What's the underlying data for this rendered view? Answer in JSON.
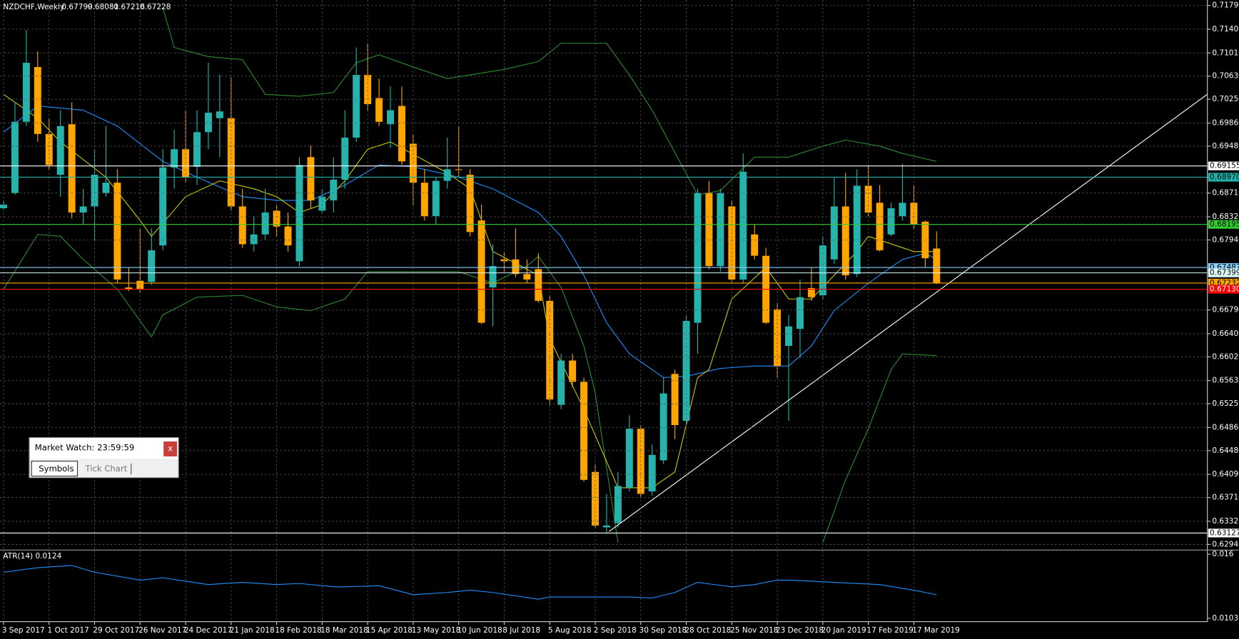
{
  "window": {
    "title": "Market Watch: 23:59:59",
    "close": "x",
    "tabs": [
      "Symbols",
      "Tick Chart"
    ]
  },
  "chart_data": [
    {
      "type": "candlestick",
      "title": "NZDCHF,Weekly",
      "categories": [
        "3 Sep 2017",
        null,
        null,
        null,
        "1 Oct 2017",
        null,
        null,
        null,
        "29 Oct 2017",
        null,
        null,
        null,
        "26 Nov 2017",
        null,
        null,
        null,
        "24 Dec 2017",
        null,
        null,
        null,
        "21 Jan 2018",
        null,
        null,
        null,
        "18 Feb 2018",
        null,
        null,
        null,
        "18 Mar 2018",
        null,
        null,
        null,
        "15 Apr 2018",
        null,
        null,
        null,
        "13 May 2018",
        null,
        null,
        null,
        "10 Jun 2018",
        null,
        null,
        null,
        "8 Jul 2018",
        null,
        null,
        null,
        "5 Aug 2018",
        null,
        null,
        null,
        "2 Sep 2018",
        null,
        null,
        null,
        "30 Sep 2018",
        null,
        null,
        null,
        "28 Oct 2018",
        null,
        null,
        null,
        "25 Nov 2018",
        null,
        null,
        null,
        "23 Dec 2018",
        null,
        null,
        null,
        "20 Jan 2019",
        null,
        null,
        null,
        "17 Feb 2019",
        null,
        null,
        null,
        "17 Mar 2019",
        null,
        null
      ],
      "open": [
        0.6846,
        0.6871,
        0.6988,
        0.7078,
        0.6968,
        0.6901,
        0.6984,
        0.6839,
        0.6849,
        0.6871,
        0.6888,
        0.6716,
        0.6727,
        0.6725,
        0.6785,
        0.6913,
        0.6943,
        0.6914,
        0.6971,
        0.6994,
        0.6994,
        0.6849,
        0.6787,
        0.6803,
        0.6842,
        0.6816,
        0.6759,
        0.693,
        0.6842,
        0.6859,
        0.6893,
        0.6962,
        0.7065,
        0.7027,
        0.6984,
        0.7014,
        0.6952,
        0.6888,
        0.6833,
        0.6891,
        0.691,
        0.6901,
        0.6826,
        0.6716,
        0.6762,
        0.6762,
        0.6738,
        0.6746,
        0.6694,
        0.6523,
        0.6596,
        0.6561,
        0.6413,
        0.6322,
        0.6329,
        0.6387,
        0.6484,
        0.6381,
        0.6432,
        0.6574,
        0.6497,
        0.6658,
        0.6871,
        0.6751,
        0.6849,
        0.6729,
        0.6803,
        0.6768,
        0.668,
        0.662,
        0.6648,
        0.6715,
        0.6703,
        0.6762,
        0.6849,
        0.6738,
        0.6883,
        0.6855,
        0.6803,
        0.6833,
        0.6855,
        0.6824,
        0.67799
      ],
      "high": [
        0.6859,
        0.702,
        0.7139,
        0.7104,
        0.6994,
        0.7007,
        0.702,
        0.6878,
        0.6943,
        0.6981,
        0.691,
        0.6749,
        0.6813,
        0.6813,
        0.6943,
        0.6975,
        0.7007,
        0.7007,
        0.7085,
        0.7065,
        0.7061,
        0.6878,
        0.6833,
        0.6878,
        0.6852,
        0.6839,
        0.693,
        0.6949,
        0.6878,
        0.693,
        0.7007,
        0.711,
        0.7117,
        0.7059,
        0.7046,
        0.7046,
        0.6968,
        0.691,
        0.6897,
        0.6962,
        0.6981,
        0.691,
        0.6852,
        0.6787,
        0.6775,
        0.6813,
        0.6762,
        0.6772,
        0.6703,
        0.6607,
        0.6607,
        0.6568,
        0.6426,
        0.6377,
        0.6413,
        0.6506,
        0.649,
        0.6458,
        0.6568,
        0.6581,
        0.6671,
        0.6878,
        0.6891,
        0.6878,
        0.6859,
        0.6936,
        0.682,
        0.6781,
        0.6691,
        0.6671,
        0.6729,
        0.6749,
        0.68,
        0.6897,
        0.6904,
        0.691,
        0.6917,
        0.6884,
        0.6855,
        0.6919,
        0.6884,
        0.6826,
        0.68081
      ],
      "low": [
        0.6842,
        0.6868,
        0.6981,
        0.6955,
        0.691,
        0.6865,
        0.6829,
        0.682,
        0.6794,
        0.6865,
        0.6723,
        0.671,
        0.6707,
        0.672,
        0.6777,
        0.6878,
        0.6888,
        0.6884,
        0.6943,
        0.693,
        0.6842,
        0.6781,
        0.6775,
        0.6794,
        0.68,
        0.6775,
        0.6751,
        0.6846,
        0.6837,
        0.6839,
        0.6878,
        0.6955,
        0.7007,
        0.6981,
        0.6945,
        0.6917,
        0.6852,
        0.6826,
        0.682,
        0.6878,
        0.6897,
        0.68,
        0.6656,
        0.6652,
        0.6742,
        0.6733,
        0.6723,
        0.6691,
        0.6523,
        0.6516,
        0.6552,
        0.6397,
        0.632,
        0.6312,
        0.6322,
        0.6381,
        0.6371,
        0.6374,
        0.6426,
        0.6467,
        0.649,
        0.6607,
        0.6746,
        0.6742,
        0.6725,
        0.6723,
        0.6762,
        0.6656,
        0.6568,
        0.6497,
        0.66,
        0.6694,
        0.6697,
        0.6755,
        0.6729,
        0.6733,
        0.6833,
        0.6775,
        0.68,
        0.6826,
        0.6813,
        0.6749,
        0.67216
      ],
      "close": [
        0.6852,
        0.6988,
        0.7085,
        0.6968,
        0.6917,
        0.6981,
        0.6839,
        0.6849,
        0.6901,
        0.6888,
        0.6729,
        0.6713,
        0.6713,
        0.6777,
        0.6913,
        0.6943,
        0.6897,
        0.6971,
        0.7003,
        0.7005,
        0.6849,
        0.6787,
        0.6803,
        0.6839,
        0.6816,
        0.6785,
        0.6917,
        0.6859,
        0.6865,
        0.6893,
        0.6962,
        0.7065,
        0.7017,
        0.6988,
        0.7007,
        0.6923,
        0.6888,
        0.6833,
        0.6891,
        0.691,
        0.6909,
        0.6807,
        0.6658,
        0.6751,
        0.6759,
        0.6738,
        0.6729,
        0.6694,
        0.6532,
        0.6596,
        0.6561,
        0.64,
        0.6325,
        0.6325,
        0.639,
        0.6484,
        0.6377,
        0.6441,
        0.6542,
        0.649,
        0.6661,
        0.6871,
        0.6751,
        0.6871,
        0.6729,
        0.6906,
        0.6768,
        0.6658,
        0.6587,
        0.6652,
        0.67,
        0.67,
        0.6785,
        0.6849,
        0.6736,
        0.6883,
        0.6839,
        0.6777,
        0.6846,
        0.6855,
        0.682,
        0.6764,
        0.67228
      ],
      "up_color": "#26b3ac",
      "down_color": "#ffa500",
      "indicators": [
        {
          "color": "#2e8b2e",
          "x": [
            14,
            15,
            18,
            21,
            23,
            26,
            29,
            31,
            33,
            36,
            39,
            41,
            44,
            47,
            49,
            53,
            55,
            57,
            61,
            63,
            66,
            69,
            72,
            74,
            77,
            79,
            82
          ],
          "values": [
            0.7175,
            0.711,
            0.7095,
            0.709,
            0.7033,
            0.703,
            0.7036,
            0.7085,
            0.7098,
            0.7078,
            0.7059,
            0.7065,
            0.7074,
            0.7087,
            0.7117,
            0.7117,
            0.7065,
            0.7007,
            0.6868,
            0.6875,
            0.693,
            0.693,
            0.6948,
            0.6958,
            0.6948,
            0.6936,
            0.6923
          ]
        },
        {
          "color": "#2e8b2e",
          "x": [
            0,
            3,
            5,
            7,
            10,
            13,
            14,
            17,
            21,
            24,
            27,
            30,
            32,
            36,
            40,
            43,
            46,
            47,
            49,
            51,
            52,
            54,
            60,
            72,
            74,
            76,
            78,
            79,
            82
          ],
          "values": [
            0.6713,
            0.6803,
            0.68,
            0.6762,
            0.6713,
            0.6635,
            0.6671,
            0.67,
            0.6703,
            0.6684,
            0.6678,
            0.6697,
            0.6742,
            0.6742,
            0.6742,
            0.6723,
            0.6751,
            0.6767,
            0.6716,
            0.662,
            0.6542,
            0.6297,
            null,
            0.6297,
            0.64,
            0.6484,
            0.6581,
            0.6607,
            0.6604
          ]
        },
        {
          "color": "#1e90ff",
          "x": [
            0,
            3,
            7,
            10,
            14,
            17,
            21,
            24,
            27,
            30,
            33,
            36,
            40,
            43,
            47,
            49,
            51,
            53,
            55,
            58,
            60,
            63,
            66,
            69,
            71,
            73,
            76,
            79,
            81,
            82
          ],
          "values": [
            0.6971,
            0.7014,
            0.7007,
            0.6981,
            0.6923,
            0.6897,
            0.6865,
            0.6859,
            0.6859,
            0.6884,
            0.6917,
            0.6914,
            0.6897,
            0.6878,
            0.6839,
            0.68,
            0.6736,
            0.6658,
            0.6607,
            0.6568,
            0.657,
            0.6583,
            0.6587,
            0.6587,
            0.662,
            0.6678,
            0.6723,
            0.6762,
            0.6772,
            0.6762
          ]
        },
        {
          "color": "#c8c800",
          "x": [
            0,
            3,
            5,
            9,
            12,
            13,
            16,
            19,
            22,
            24,
            26,
            28,
            30,
            32,
            34,
            39,
            41,
            43,
            47,
            48,
            51,
            54,
            57,
            59,
            61,
            62,
            64,
            67,
            69,
            71,
            75,
            76,
            80,
            82
          ],
          "values": [
            0.7033,
            0.6994,
            0.6955,
            0.6897,
            0.6826,
            0.68,
            0.6865,
            0.6891,
            0.6878,
            0.6865,
            0.6839,
            0.6852,
            0.6891,
            0.6943,
            0.6955,
            0.6904,
            0.6878,
            0.6775,
            0.6736,
            0.6632,
            0.6516,
            0.6387,
            0.6387,
            0.6413,
            0.6568,
            0.6581,
            0.6697,
            0.6749,
            0.6697,
            0.6697,
            0.6775,
            0.68,
            0.6775,
            0.6775
          ]
        }
      ],
      "trendline": {
        "color": "#ffffff",
        "x": [
          53.2,
          106
        ],
        "values": [
          0.6315,
          0.7036
        ]
      },
      "levels": [
        {
          "value": 0.69155,
          "label": "0.69155",
          "color": "#ffffff"
        },
        {
          "value": 0.6897,
          "label": "0.68970",
          "color": "#20b2aa"
        },
        {
          "value": 0.68195,
          "label": "0.68195",
          "color": "#32cd32"
        },
        {
          "value": 0.67487,
          "label": "0.67487",
          "color": "#87cefa"
        },
        {
          "value": 0.67399,
          "label": "0.67399",
          "color": "#e0ffff"
        },
        {
          "value": 0.67232,
          "label": "0.67232",
          "color": "#ffa500"
        },
        {
          "value": 0.6713,
          "label": "0.67130",
          "color": "#ff0000"
        },
        {
          "value": 0.63127,
          "label": "0.63127",
          "color": "#ffffff"
        }
      ],
      "ylim": [
        0.6286,
        0.7188
      ],
      "yticks": [
        {
          "value": 0.7179,
          "label": "0.71790"
        },
        {
          "value": 0.714,
          "label": "0.71400"
        },
        {
          "value": 0.7101,
          "label": "0.71010"
        },
        {
          "value": 0.7063,
          "label": "0.70630"
        },
        {
          "value": 0.7025,
          "label": "0.70250"
        },
        {
          "value": 0.6986,
          "label": "0.69860"
        },
        {
          "value": 0.6948,
          "label": "0.69480"
        },
        {
          "value": 0.6871,
          "label": "0.68710"
        },
        {
          "value": 0.6832,
          "label": "0.68320"
        },
        {
          "value": 0.6794,
          "label": "0.67940"
        },
        {
          "value": 0.6679,
          "label": "0.66790"
        },
        {
          "value": 0.664,
          "label": "0.66400"
        },
        {
          "value": 0.6602,
          "label": "0.66020"
        },
        {
          "value": 0.6563,
          "label": "0.65630"
        },
        {
          "value": 0.6525,
          "label": "0.65250"
        },
        {
          "value": 0.6486,
          "label": "0.64860"
        },
        {
          "value": 0.6448,
          "label": "0.64480"
        },
        {
          "value": 0.6409,
          "label": "0.64090"
        },
        {
          "value": 0.6371,
          "label": "0.63710"
        },
        {
          "value": 0.6332,
          "label": "0.63320"
        },
        {
          "value": 0.6294,
          "label": "0.62940"
        }
      ],
      "grid": true
    },
    {
      "type": "line",
      "title": "ATR(14) 0.0124",
      "color": "#1e90ff",
      "x": [
        0,
        3,
        6,
        8,
        12,
        14,
        18,
        21,
        24,
        26,
        29,
        30,
        33,
        36,
        39,
        41,
        43,
        47,
        48,
        52,
        55,
        57,
        59,
        61,
        64,
        66,
        68,
        69,
        73,
        77,
        80,
        82
      ],
      "values": [
        0.0144,
        0.0148,
        0.015,
        0.0144,
        0.0137,
        0.0139,
        0.0133,
        0.0135,
        0.0133,
        0.0134,
        0.0131,
        0.0131,
        0.0132,
        0.0124,
        0.0126,
        0.0128,
        0.0126,
        0.012,
        0.0122,
        0.0122,
        0.0122,
        0.0121,
        0.0126,
        0.0135,
        0.0131,
        0.0133,
        0.0137,
        0.0137,
        0.0135,
        0.0133,
        0.0128,
        0.0124
      ],
      "ylim": [
        0.01,
        0.0163
      ],
      "yticks": [
        0.016,
        0.0103
      ]
    }
  ]
}
